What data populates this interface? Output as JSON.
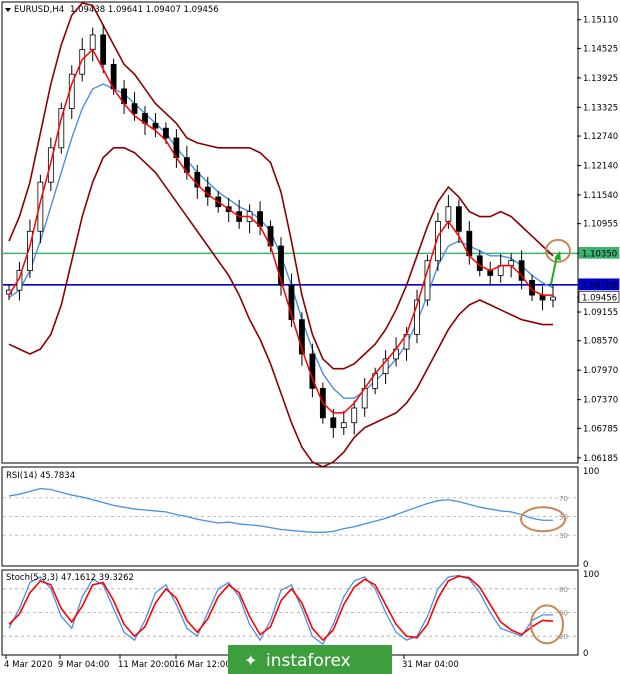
{
  "header": {
    "symbol_timeframe": "EURUSD,H4",
    "ohlc": "1.09438 1.09641 1.09407 1.09456"
  },
  "colors": {
    "candle": "#000000",
    "ma_fast": "#ff0000",
    "ma_slow": "#4a90e2",
    "bollinger": "#8b0000",
    "level_green": "#3cb371",
    "level_blue": "#0000cc",
    "annotation": "#c8875a",
    "arrow": "#22aa22",
    "indicator_line": "#4a90e2",
    "stoch_signal": "#ff0000",
    "watermark_bg": "#3d9e3d"
  },
  "watermark": "instaforex",
  "chart_data": [
    {
      "type": "candlestick",
      "pane": "price",
      "price_ticks": [
        "1.15110",
        "1.14525",
        "1.13925",
        "1.13325",
        "1.12740",
        "1.12140",
        "1.11540",
        "1.10955",
        "1.10350",
        "1.09709",
        "1.09456",
        "1.09155",
        "1.08570",
        "1.07970",
        "1.07370",
        "1.06785",
        "1.06185"
      ],
      "ylim": [
        1.061,
        1.1545
      ],
      "horizontal_levels": [
        {
          "value": 1.1035,
          "label": "1.10350",
          "color": "#3cb371"
        },
        {
          "value": 1.09709,
          "label": "1.09709",
          "color": "#0000cc"
        },
        {
          "value": 1.09456,
          "label": "1.09456",
          "color": "#ffffff",
          "current": true
        }
      ],
      "date_labels": [
        "4 Mar 2020",
        "9 Mar 04:00",
        "11 Mar 20:00",
        "16 Mar 12:00",
        "31 Mar 04:00"
      ],
      "close_series": [
        1.096,
        1.1,
        1.108,
        1.118,
        1.125,
        1.133,
        1.14,
        1.145,
        1.148,
        1.142,
        1.137,
        1.134,
        1.132,
        1.13,
        1.129,
        1.127,
        1.123,
        1.12,
        1.117,
        1.115,
        1.113,
        1.112,
        1.11,
        1.112,
        1.109,
        1.105,
        1.097,
        1.09,
        1.083,
        1.076,
        1.07,
        1.068,
        1.069,
        1.072,
        1.076,
        1.079,
        1.082,
        1.084,
        1.087,
        1.094,
        1.102,
        1.11,
        1.113,
        1.108,
        1.103,
        1.1,
        1.099,
        1.101,
        1.102,
        1.098,
        1.095,
        1.094,
        1.0946
      ],
      "ma_fast_series": [
        1.095,
        1.0985,
        1.105,
        1.114,
        1.122,
        1.131,
        1.138,
        1.143,
        1.145,
        1.141,
        1.137,
        1.134,
        1.1315,
        1.13,
        1.1285,
        1.1265,
        1.123,
        1.12,
        1.1175,
        1.1155,
        1.114,
        1.1125,
        1.111,
        1.111,
        1.109,
        1.105,
        1.098,
        1.091,
        1.084,
        1.078,
        1.073,
        1.071,
        1.071,
        1.073,
        1.076,
        1.079,
        1.0815,
        1.084,
        1.087,
        1.093,
        1.1,
        1.107,
        1.11,
        1.107,
        1.103,
        1.101,
        1.1,
        1.101,
        1.101,
        1.099,
        1.096,
        1.095,
        1.095
      ],
      "ma_slow_series": [
        1.0945,
        1.096,
        1.1,
        1.106,
        1.113,
        1.12,
        1.127,
        1.133,
        1.137,
        1.138,
        1.137,
        1.136,
        1.134,
        1.132,
        1.13,
        1.128,
        1.125,
        1.1225,
        1.12,
        1.118,
        1.116,
        1.1145,
        1.113,
        1.112,
        1.1105,
        1.108,
        1.103,
        1.097,
        1.09,
        1.084,
        1.079,
        1.076,
        1.074,
        1.074,
        1.0755,
        1.0775,
        1.0795,
        1.082,
        1.085,
        1.0895,
        1.095,
        1.101,
        1.105,
        1.106,
        1.105,
        1.104,
        1.103,
        1.103,
        1.1025,
        1.101,
        1.099,
        1.0975,
        1.0965
      ],
      "bb_upper_series": [
        1.106,
        1.111,
        1.118,
        1.128,
        1.138,
        1.146,
        1.152,
        1.1545,
        1.154,
        1.15,
        1.146,
        1.142,
        1.14,
        1.137,
        1.134,
        1.132,
        1.13,
        1.127,
        1.126,
        1.1255,
        1.125,
        1.125,
        1.125,
        1.125,
        1.124,
        1.122,
        1.116,
        1.106,
        1.095,
        1.087,
        1.082,
        1.08,
        1.08,
        1.081,
        1.083,
        1.085,
        1.088,
        1.092,
        1.097,
        1.103,
        1.109,
        1.114,
        1.117,
        1.115,
        1.112,
        1.111,
        1.111,
        1.112,
        1.111,
        1.109,
        1.107,
        1.105,
        1.103
      ],
      "bb_lower_series": [
        1.085,
        1.084,
        1.083,
        1.084,
        1.087,
        1.093,
        1.102,
        1.111,
        1.118,
        1.123,
        1.125,
        1.125,
        1.124,
        1.122,
        1.12,
        1.117,
        1.114,
        1.111,
        1.108,
        1.105,
        1.102,
        1.099,
        1.095,
        1.09,
        1.086,
        1.081,
        1.075,
        1.069,
        1.064,
        1.061,
        1.06,
        1.061,
        1.063,
        1.066,
        1.068,
        1.069,
        1.07,
        1.071,
        1.073,
        1.076,
        1.08,
        1.084,
        1.088,
        1.091,
        1.093,
        1.094,
        1.093,
        1.092,
        1.091,
        1.09,
        1.0895,
        1.089,
        1.089
      ]
    },
    {
      "type": "line",
      "pane": "rsi",
      "title": "RSI(14) 45.7834",
      "ylim": [
        0,
        100
      ],
      "right_ticks": [
        "100",
        "0"
      ],
      "levels": [
        {
          "value": 70,
          "label": "70"
        },
        {
          "value": 50,
          "label": "50"
        },
        {
          "value": 30,
          "label": "30"
        }
      ],
      "values": [
        72,
        74,
        77,
        80,
        79,
        76,
        73,
        71,
        68,
        65,
        62,
        60,
        58,
        57,
        56,
        55,
        52,
        50,
        47,
        45,
        43,
        44,
        42,
        41,
        40,
        38,
        36,
        35,
        34,
        33,
        33,
        34,
        37,
        39,
        42,
        45,
        48,
        52,
        56,
        60,
        64,
        67,
        68,
        66,
        63,
        60,
        58,
        56,
        55,
        52,
        48,
        46,
        46
      ]
    },
    {
      "type": "line",
      "pane": "stochastic",
      "title": "Stoch(5,3,3) 47.1612 39.3262",
      "ylim": [
        0,
        100
      ],
      "right_ticks": [
        "100",
        "0"
      ],
      "levels": [
        {
          "value": 80,
          "label": "80"
        },
        {
          "value": 50,
          "label": "50"
        },
        {
          "value": 20,
          "label": "20"
        }
      ],
      "series": [
        {
          "values": [
            30,
            55,
            88,
            95,
            80,
            45,
            30,
            70,
            92,
            85,
            55,
            25,
            15,
            40,
            75,
            85,
            60,
            30,
            20,
            50,
            80,
            88,
            70,
            35,
            15,
            40,
            78,
            85,
            55,
            20,
            10,
            35,
            70,
            90,
            95,
            80,
            50,
            25,
            15,
            20,
            45,
            80,
            95,
            97,
            92,
            75,
            50,
            30,
            25,
            20,
            40,
            47,
            47
          ]
        },
        {
          "values": [
            35,
            48,
            75,
            90,
            85,
            55,
            38,
            58,
            85,
            88,
            65,
            35,
            20,
            32,
            62,
            80,
            68,
            40,
            25,
            42,
            70,
            85,
            75,
            45,
            22,
            32,
            65,
            80,
            62,
            30,
            15,
            28,
            60,
            82,
            92,
            85,
            60,
            35,
            20,
            18,
            35,
            68,
            90,
            96,
            94,
            82,
            60,
            38,
            28,
            22,
            32,
            40,
            39
          ]
        }
      ],
      "watermark_band_note": "date axis overlapped by watermark"
    }
  ]
}
